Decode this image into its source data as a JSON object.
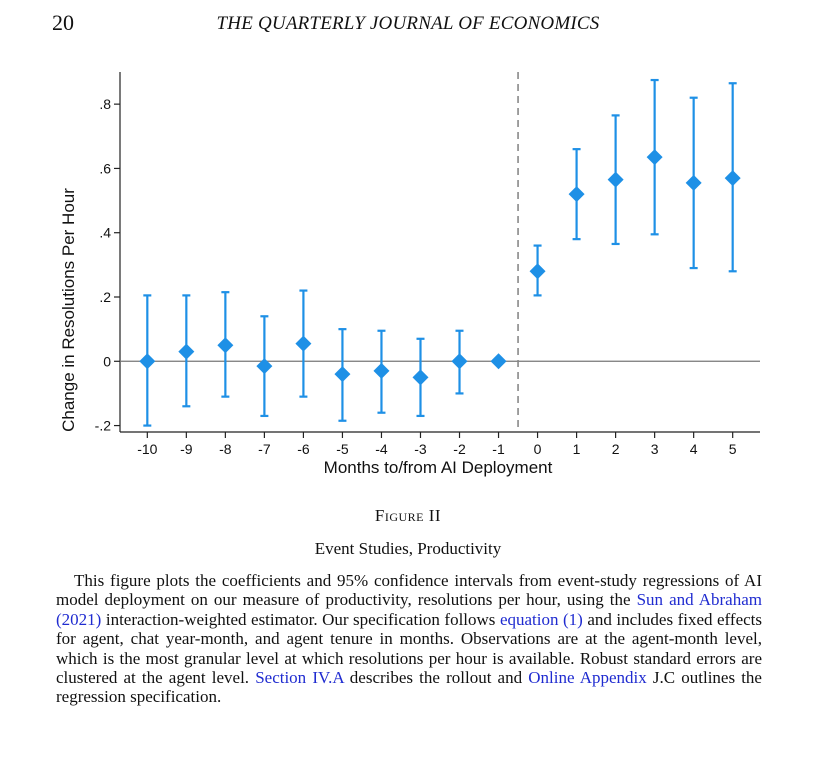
{
  "header": {
    "page_number": "20",
    "journal_title": "THE QUARTERLY JOURNAL OF ECONOMICS"
  },
  "figure": {
    "label": "Figure II",
    "title": "Event Studies, Productivity",
    "caption": {
      "part1": "This figure plots the coefficients and 95% confidence intervals from event-study regressions of AI model deployment on our measure of productivity, resolutions per hour, using the ",
      "link1": "Sun and Abraham (2021)",
      "part2": " interaction-weighted estimator. Our specification follows ",
      "link2": "equation (1)",
      "part3": " and includes fixed effects for agent, chat year-month, and agent tenure in months. Observations are at the agent-month level, which is the most granular level at which resolutions per hour is available. Robust standard errors are clustered at the agent level. ",
      "link3": "Section IV.A",
      "part4": " describes the rollout and ",
      "link4": "Online Appendix",
      "part5": " J.C outlines the regression specification."
    }
  },
  "colors": {
    "marker": "#1e90e6",
    "zero_line": "#777777",
    "deployment_line": "#888888",
    "link": "#1f2bd0"
  },
  "chart_data": {
    "type": "scatter",
    "title": "",
    "xlabel": "Months to/from AI Deployment",
    "ylabel": "Change in Resolutions Per Hour",
    "x": [
      -10,
      -9,
      -8,
      -7,
      -6,
      -5,
      -4,
      -3,
      -2,
      -1,
      0,
      1,
      2,
      3,
      4,
      5
    ],
    "x_tick_labels": [
      "-10",
      "-9",
      "-8",
      "-7",
      "-6",
      "-5",
      "-4",
      "-3",
      "-2",
      "-1",
      "0",
      "1",
      "2",
      "3",
      "4",
      "5"
    ],
    "y_ticks": [
      -0.2,
      0,
      0.2,
      0.4,
      0.6,
      0.8
    ],
    "y_tick_labels": [
      "-.2",
      "0",
      ".2",
      ".4",
      ".6",
      ".8"
    ],
    "ylim": [
      -0.22,
      0.9
    ],
    "xlim": [
      -10.7,
      5.7
    ],
    "deployment_marker_x": -0.5,
    "series": [
      {
        "marker": "diamond",
        "values": [
          0.0,
          0.03,
          0.05,
          -0.015,
          0.055,
          -0.04,
          -0.03,
          -0.05,
          0.0,
          0.0,
          0.28,
          0.52,
          0.565,
          0.635,
          0.555,
          0.57
        ],
        "ci_lower": [
          -0.2,
          -0.14,
          -0.11,
          -0.17,
          -0.11,
          -0.185,
          -0.16,
          -0.17,
          -0.1,
          0.0,
          0.205,
          0.38,
          0.365,
          0.395,
          0.29,
          0.28
        ],
        "ci_upper": [
          0.205,
          0.205,
          0.215,
          0.14,
          0.22,
          0.1,
          0.095,
          0.07,
          0.095,
          0.0,
          0.36,
          0.66,
          0.765,
          0.875,
          0.82,
          0.865
        ]
      }
    ],
    "grid": false,
    "legend": "none"
  }
}
